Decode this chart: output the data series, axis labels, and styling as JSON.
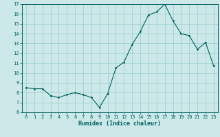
{
  "hours": [
    0,
    1,
    2,
    3,
    4,
    5,
    6,
    7,
    8,
    9,
    10,
    11,
    12,
    13,
    14,
    15,
    16,
    17,
    18,
    19,
    20,
    21,
    22,
    23
  ],
  "values": [
    8.5,
    8.4,
    8.4,
    7.7,
    7.5,
    7.8,
    8.0,
    7.8,
    7.5,
    6.5,
    7.9,
    10.5,
    11.1,
    12.9,
    14.2,
    15.9,
    16.2,
    17.0,
    15.3,
    14.0,
    13.8,
    12.4,
    13.1,
    10.7
  ],
  "bg_color": "#cce8e8",
  "line_color": "#006060",
  "grid_color": "#99cccc",
  "xlabel": "Humidex (Indice chaleur)",
  "ylim": [
    6,
    17
  ],
  "xlim_min": -0.5,
  "xlim_max": 23.5,
  "yticks": [
    6,
    7,
    8,
    9,
    10,
    11,
    12,
    13,
    14,
    15,
    16,
    17
  ],
  "xticks": [
    0,
    1,
    2,
    3,
    4,
    5,
    6,
    7,
    8,
    9,
    10,
    11,
    12,
    13,
    14,
    15,
    16,
    17,
    18,
    19,
    20,
    21,
    22,
    23
  ],
  "tick_fontsize": 5,
  "xlabel_fontsize": 6
}
